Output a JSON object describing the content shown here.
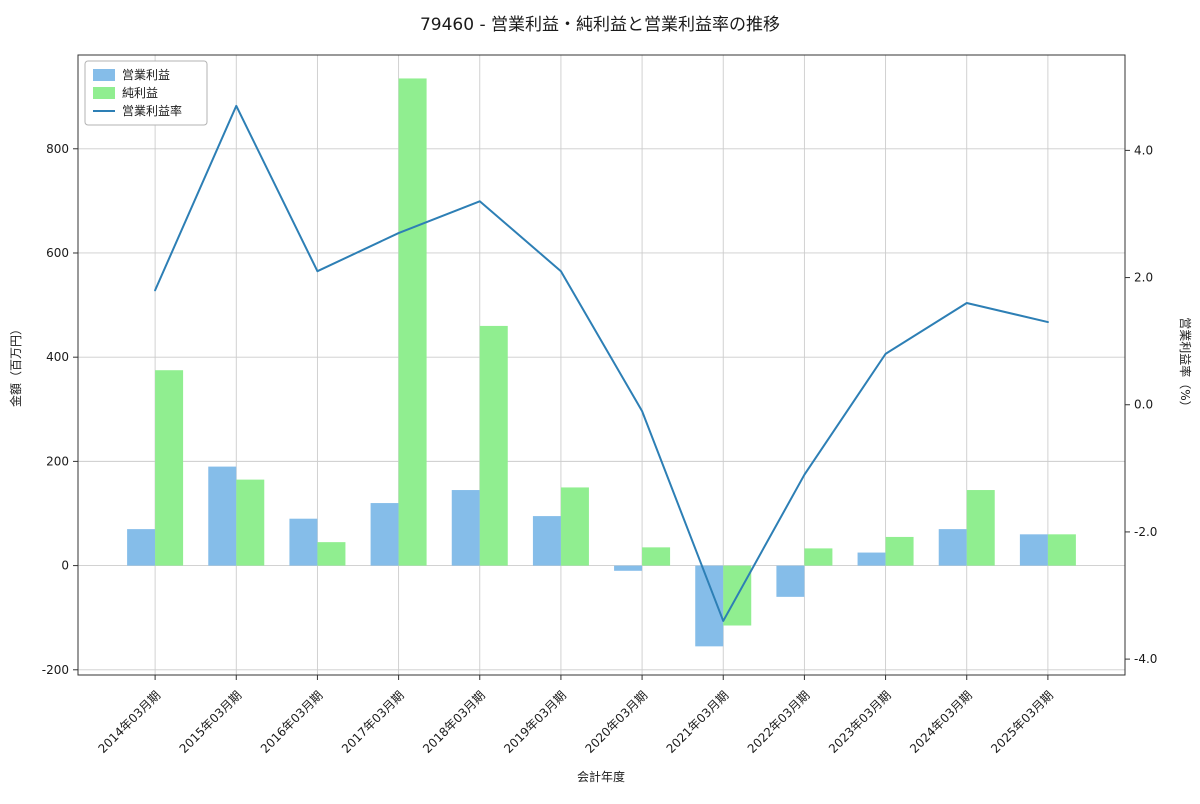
{
  "chart_data": {
    "type": "bar+line",
    "title": "79460 - 営業利益・純利益と営業利益率の推移",
    "xlabel": "会計年度",
    "ylabel_left": "金額（百万円）",
    "ylabel_right": "営業利益率（%）",
    "categories": [
      "2014年03月期",
      "2015年03月期",
      "2016年03月期",
      "2017年03月期",
      "2018年03月期",
      "2019年03月期",
      "2020年03月期",
      "2021年03月期",
      "2022年03月期",
      "2023年03月期",
      "2024年03月期",
      "2025年03月期"
    ],
    "series": [
      {
        "name": "営業利益",
        "type": "bar",
        "axis": "left",
        "color": "#85bde9",
        "values": [
          70,
          190,
          90,
          120,
          145,
          95,
          -10,
          -155,
          -60,
          25,
          70,
          60
        ]
      },
      {
        "name": "純利益",
        "type": "bar",
        "axis": "left",
        "color": "#90ee90",
        "values": [
          375,
          165,
          45,
          935,
          460,
          150,
          35,
          -115,
          33,
          55,
          145,
          60
        ]
      },
      {
        "name": "営業利益率",
        "type": "line",
        "axis": "right",
        "color": "#2d7fb5",
        "values": [
          1.8,
          4.7,
          2.1,
          2.7,
          3.2,
          2.1,
          -0.1,
          -3.4,
          -1.1,
          0.8,
          1.6,
          1.3
        ]
      }
    ],
    "ylim_left": [
      -210,
      980
    ],
    "yticks_left": [
      -200,
      0,
      200,
      400,
      600,
      800
    ],
    "ylim_right": [
      -4.25,
      5.5
    ],
    "yticks_right": [
      -4.0,
      -2.0,
      0.0,
      2.0,
      4.0
    ],
    "grid": true,
    "legend_position": "upper left",
    "colors": {
      "grid": "#cccccc",
      "frame": "#333333",
      "background": "#ffffff"
    }
  }
}
